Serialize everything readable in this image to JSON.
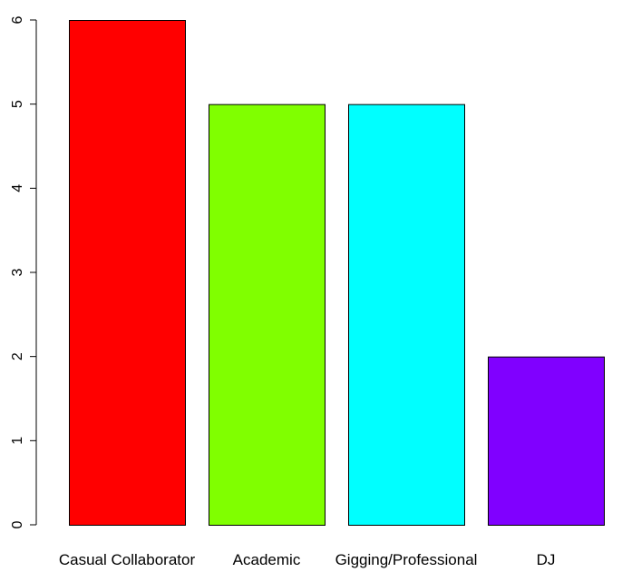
{
  "chart_data": {
    "type": "bar",
    "categories": [
      "Casual Collaborator",
      "Academic",
      "Gigging/Professional",
      "DJ"
    ],
    "values": [
      6,
      5,
      5,
      2
    ],
    "colors": [
      "#ff0000",
      "#80ff00",
      "#00ffff",
      "#8000ff"
    ],
    "yticks": [
      "0",
      "1",
      "2",
      "3",
      "4",
      "5",
      "6"
    ],
    "ylim": [
      0,
      6
    ],
    "grid": false,
    "legend": "none"
  }
}
